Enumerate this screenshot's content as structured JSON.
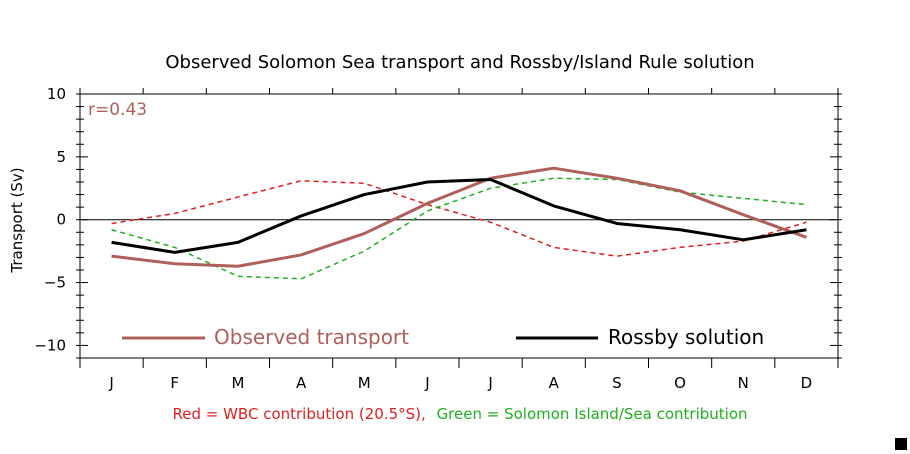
{
  "chart_data": {
    "type": "line",
    "title": "Observed Solomon Sea transport and Rossby/Island Rule solution",
    "xlabel": "",
    "ylabel": "Transport (Sv)",
    "categories": [
      "J",
      "F",
      "M",
      "A",
      "M",
      "J",
      "J",
      "A",
      "S",
      "O",
      "N",
      "D"
    ],
    "ylim": [
      -11,
      10
    ],
    "yticks": [
      -10,
      -5,
      0,
      5,
      10
    ],
    "ytick_labels": [
      "−10",
      "−5",
      "0",
      "5",
      "10"
    ],
    "zero_line": true,
    "series": [
      {
        "name": "Observed transport",
        "style": "solid",
        "color": "#b0605a",
        "values": [
          -2.9,
          -3.5,
          -3.7,
          -2.8,
          -1.1,
          1.3,
          3.3,
          4.1,
          3.3,
          2.3,
          0.4,
          -1.4
        ]
      },
      {
        "name": "Rossby solution",
        "style": "solid",
        "color": "#000000",
        "values": [
          -1.8,
          -2.6,
          -1.8,
          0.3,
          2.0,
          3.0,
          3.2,
          1.1,
          -0.3,
          -0.8,
          -1.6,
          -0.8
        ]
      },
      {
        "name": "",
        "style": "dashed",
        "color": "#e02020",
        "values": [
          -0.3,
          0.5,
          1.8,
          3.1,
          2.9,
          1.2,
          -0.2,
          -2.2,
          -2.9,
          -2.2,
          -1.7,
          -0.2
        ]
      },
      {
        "name": "",
        "style": "dashed",
        "color": "#20b020",
        "values": [
          -0.8,
          -2.2,
          -4.5,
          -4.7,
          -2.5,
          0.7,
          2.5,
          3.3,
          3.2,
          2.2,
          1.7,
          1.2
        ]
      }
    ],
    "annotation": {
      "text": "r=0.43",
      "color": "#b0605a"
    },
    "caption": {
      "red_part": "Red = WBC contribution (20.5°S),",
      "green_part": "Green = Solomon Island/Sea contribution",
      "red_color": "#e02020",
      "green_color": "#20b020"
    }
  }
}
